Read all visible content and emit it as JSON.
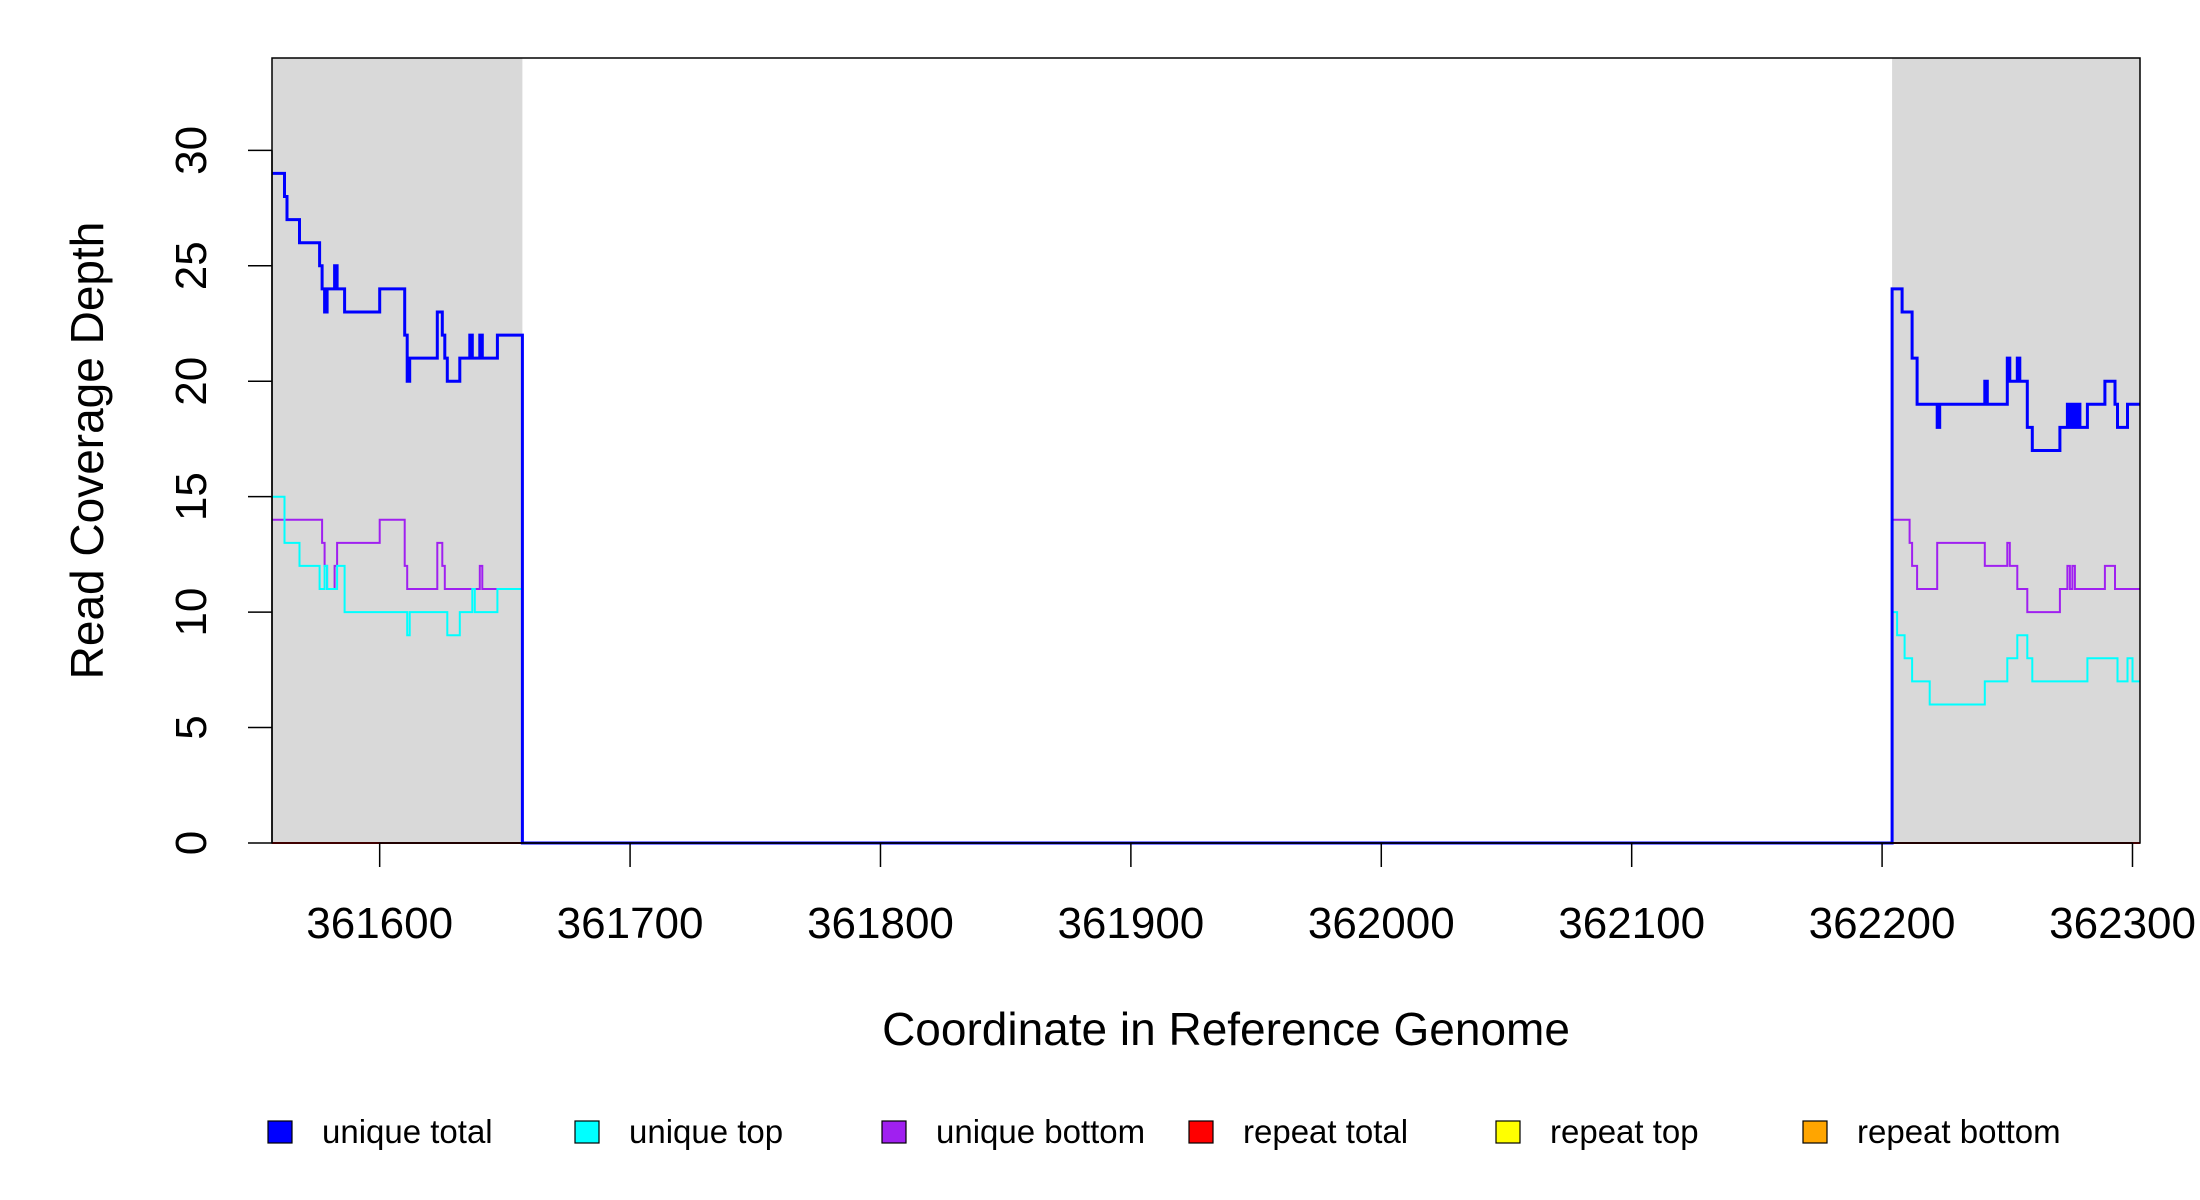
{
  "chart_data": {
    "type": "line",
    "xlabel": "Coordinate in Reference Genome",
    "ylabel": "Read Coverage Depth",
    "xlim": [
      361557,
      362303
    ],
    "ylim": [
      0,
      34
    ],
    "x_ticks": [
      361600,
      361700,
      361800,
      361900,
      362000,
      362100,
      362200,
      362300
    ],
    "y_ticks": [
      0,
      5,
      10,
      15,
      20,
      25,
      30
    ],
    "x_tick_labels": [
      "361600",
      "361700",
      "361800",
      "361900",
      "362000",
      "362100",
      "362200",
      "362300"
    ],
    "y_tick_labels": [
      "0",
      "5",
      "10",
      "15",
      "20",
      "25",
      "30"
    ],
    "shaded_regions": [
      {
        "x_start": 361557,
        "x_end": 361657,
        "color": "#d9d9d9"
      },
      {
        "x_start": 362204,
        "x_end": 362303,
        "color": "#d9d9d9"
      }
    ],
    "grid": false,
    "legend_position": "bottom",
    "series": [
      {
        "name": "unique total",
        "color": "#0000ff",
        "points": [
          [
            361557,
            29
          ],
          [
            361562,
            28
          ],
          [
            361563,
            27
          ],
          [
            361568,
            26
          ],
          [
            361576,
            25
          ],
          [
            361577,
            24
          ],
          [
            361578,
            23
          ],
          [
            361579,
            24
          ],
          [
            361582,
            25
          ],
          [
            361583,
            24
          ],
          [
            361586,
            23
          ],
          [
            361600,
            24
          ],
          [
            361610,
            22
          ],
          [
            361611,
            20
          ],
          [
            361612,
            21
          ],
          [
            361623,
            23
          ],
          [
            361625,
            22
          ],
          [
            361626,
            21
          ],
          [
            361627,
            20
          ],
          [
            361632,
            21
          ],
          [
            361636,
            22
          ],
          [
            361637,
            21
          ],
          [
            361640,
            22
          ],
          [
            361641,
            21
          ],
          [
            361647,
            22
          ],
          [
            361657,
            0
          ],
          [
            362204,
            24
          ],
          [
            362208,
            23
          ],
          [
            362212,
            21
          ],
          [
            362214,
            19
          ],
          [
            362222,
            18
          ],
          [
            362223,
            19
          ],
          [
            362241,
            20
          ],
          [
            362242,
            19
          ],
          [
            362250,
            21
          ],
          [
            362251,
            20
          ],
          [
            362254,
            21
          ],
          [
            362255,
            20
          ],
          [
            362258,
            18
          ],
          [
            362260,
            17
          ],
          [
            362271,
            18
          ],
          [
            362274,
            19
          ],
          [
            362275,
            18
          ],
          [
            362276,
            19
          ],
          [
            362277,
            18
          ],
          [
            362278,
            19
          ],
          [
            362279,
            18
          ],
          [
            362282,
            19
          ],
          [
            362289,
            20
          ],
          [
            362293,
            19
          ],
          [
            362294,
            18
          ],
          [
            362298,
            19
          ],
          [
            362303,
            19
          ]
        ]
      },
      {
        "name": "unique top",
        "color": "#00ffff",
        "points": [
          [
            361557,
            15
          ],
          [
            361562,
            13
          ],
          [
            361568,
            12
          ],
          [
            361576,
            11
          ],
          [
            361578,
            12
          ],
          [
            361579,
            11
          ],
          [
            361583,
            12
          ],
          [
            361586,
            10
          ],
          [
            361611,
            9
          ],
          [
            361612,
            10
          ],
          [
            361627,
            9
          ],
          [
            361632,
            10
          ],
          [
            361637,
            11
          ],
          [
            361638,
            10
          ],
          [
            361647,
            11
          ],
          [
            361657,
            0
          ],
          [
            362204,
            10
          ],
          [
            362206,
            9
          ],
          [
            362209,
            8
          ],
          [
            362212,
            7
          ],
          [
            362219,
            6
          ],
          [
            362241,
            7
          ],
          [
            362250,
            8
          ],
          [
            362254,
            9
          ],
          [
            362258,
            8
          ],
          [
            362260,
            7
          ],
          [
            362282,
            8
          ],
          [
            362294,
            7
          ],
          [
            362298,
            8
          ],
          [
            362300,
            7
          ],
          [
            362303,
            7
          ]
        ]
      },
      {
        "name": "unique bottom",
        "color": "#a020f0",
        "points": [
          [
            361557,
            14
          ],
          [
            361577,
            13
          ],
          [
            361578,
            12
          ],
          [
            361579,
            11
          ],
          [
            361582,
            12
          ],
          [
            361583,
            13
          ],
          [
            361600,
            14
          ],
          [
            361610,
            12
          ],
          [
            361611,
            11
          ],
          [
            361623,
            13
          ],
          [
            361625,
            12
          ],
          [
            361626,
            11
          ],
          [
            361640,
            12
          ],
          [
            361641,
            11
          ],
          [
            361657,
            0
          ],
          [
            362204,
            14
          ],
          [
            362211,
            13
          ],
          [
            362212,
            12
          ],
          [
            362214,
            11
          ],
          [
            362222,
            13
          ],
          [
            362241,
            12
          ],
          [
            362250,
            13
          ],
          [
            362251,
            12
          ],
          [
            362254,
            11
          ],
          [
            362258,
            10
          ],
          [
            362271,
            11
          ],
          [
            362274,
            12
          ],
          [
            362275,
            11
          ],
          [
            362276,
            12
          ],
          [
            362277,
            11
          ],
          [
            362289,
            12
          ],
          [
            362293,
            11
          ],
          [
            362303,
            11
          ]
        ]
      },
      {
        "name": "repeat total",
        "color": "#ff0000",
        "points": [
          [
            361557,
            0
          ],
          [
            362303,
            0
          ]
        ]
      },
      {
        "name": "repeat top",
        "color": "#ffff00",
        "points": [
          [
            361557,
            0
          ],
          [
            362303,
            0
          ]
        ]
      },
      {
        "name": "repeat bottom",
        "color": "#ffa500",
        "points": [
          [
            361557,
            0
          ],
          [
            362303,
            0
          ]
        ]
      }
    ]
  }
}
